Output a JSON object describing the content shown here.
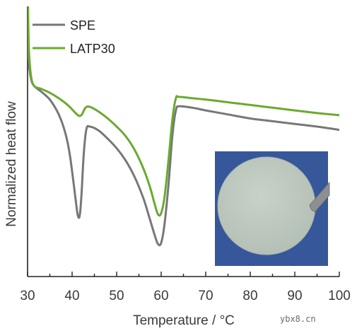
{
  "chart_data": {
    "type": "line",
    "xlabel": "Temperature / °C",
    "ylabel": "Normalized heat flow",
    "xlim": [
      30,
      100
    ],
    "x_ticks": [
      30,
      40,
      50,
      60,
      70,
      80,
      90,
      100
    ],
    "y_ticks_labeled": false,
    "grid": false,
    "legend_position": "top-left",
    "series": [
      {
        "name": "SPE",
        "color": "#777777",
        "points": [
          [
            30.1,
            0.89
          ],
          [
            30.3,
            0.79
          ],
          [
            30.8,
            0.73
          ],
          [
            31.5,
            0.705
          ],
          [
            33,
            0.685
          ],
          [
            35,
            0.655
          ],
          [
            37,
            0.6
          ],
          [
            38.5,
            0.53
          ],
          [
            39.5,
            0.45
          ],
          [
            40.3,
            0.35
          ],
          [
            40.9,
            0.27
          ],
          [
            41.3,
            0.225
          ],
          [
            41.7,
            0.225
          ],
          [
            42.1,
            0.3
          ],
          [
            42.6,
            0.45
          ],
          [
            43.2,
            0.545
          ],
          [
            44,
            0.555
          ],
          [
            46,
            0.54
          ],
          [
            48,
            0.51
          ],
          [
            50,
            0.475
          ],
          [
            52,
            0.43
          ],
          [
            54,
            0.37
          ],
          [
            56,
            0.29
          ],
          [
            57.5,
            0.21
          ],
          [
            58.5,
            0.155
          ],
          [
            59.3,
            0.12
          ],
          [
            60,
            0.125
          ],
          [
            60.8,
            0.2
          ],
          [
            61.7,
            0.35
          ],
          [
            62.5,
            0.52
          ],
          [
            63.3,
            0.615
          ],
          [
            64,
            0.63
          ],
          [
            67,
            0.625
          ],
          [
            70,
            0.615
          ],
          [
            75,
            0.6
          ],
          [
            80,
            0.585
          ],
          [
            85,
            0.575
          ],
          [
            90,
            0.565
          ],
          [
            95,
            0.555
          ],
          [
            100,
            0.543
          ]
        ]
      },
      {
        "name": "LATP30",
        "color": "#6aaa2f",
        "points": [
          [
            30.1,
            1.0
          ],
          [
            30.3,
            0.84
          ],
          [
            30.8,
            0.74
          ],
          [
            31.5,
            0.705
          ],
          [
            33,
            0.695
          ],
          [
            35,
            0.68
          ],
          [
            37,
            0.66
          ],
          [
            39,
            0.635
          ],
          [
            40.5,
            0.61
          ],
          [
            41.5,
            0.595
          ],
          [
            42.2,
            0.6
          ],
          [
            43,
            0.625
          ],
          [
            44,
            0.628
          ],
          [
            46,
            0.61
          ],
          [
            48,
            0.585
          ],
          [
            50,
            0.555
          ],
          [
            52,
            0.52
          ],
          [
            54,
            0.47
          ],
          [
            56,
            0.4
          ],
          [
            57.5,
            0.33
          ],
          [
            58.5,
            0.27
          ],
          [
            59.3,
            0.23
          ],
          [
            60,
            0.235
          ],
          [
            60.8,
            0.3
          ],
          [
            61.7,
            0.44
          ],
          [
            62.5,
            0.58
          ],
          [
            63.3,
            0.66
          ],
          [
            64,
            0.665
          ],
          [
            67,
            0.66
          ],
          [
            70,
            0.655
          ],
          [
            75,
            0.645
          ],
          [
            80,
            0.635
          ],
          [
            85,
            0.625
          ],
          [
            90,
            0.615
          ],
          [
            95,
            0.605
          ],
          [
            100,
            0.597
          ]
        ]
      }
    ],
    "inset": {
      "type": "photo",
      "position": "bottom-right"
    }
  },
  "watermark": "ybx8.cn"
}
